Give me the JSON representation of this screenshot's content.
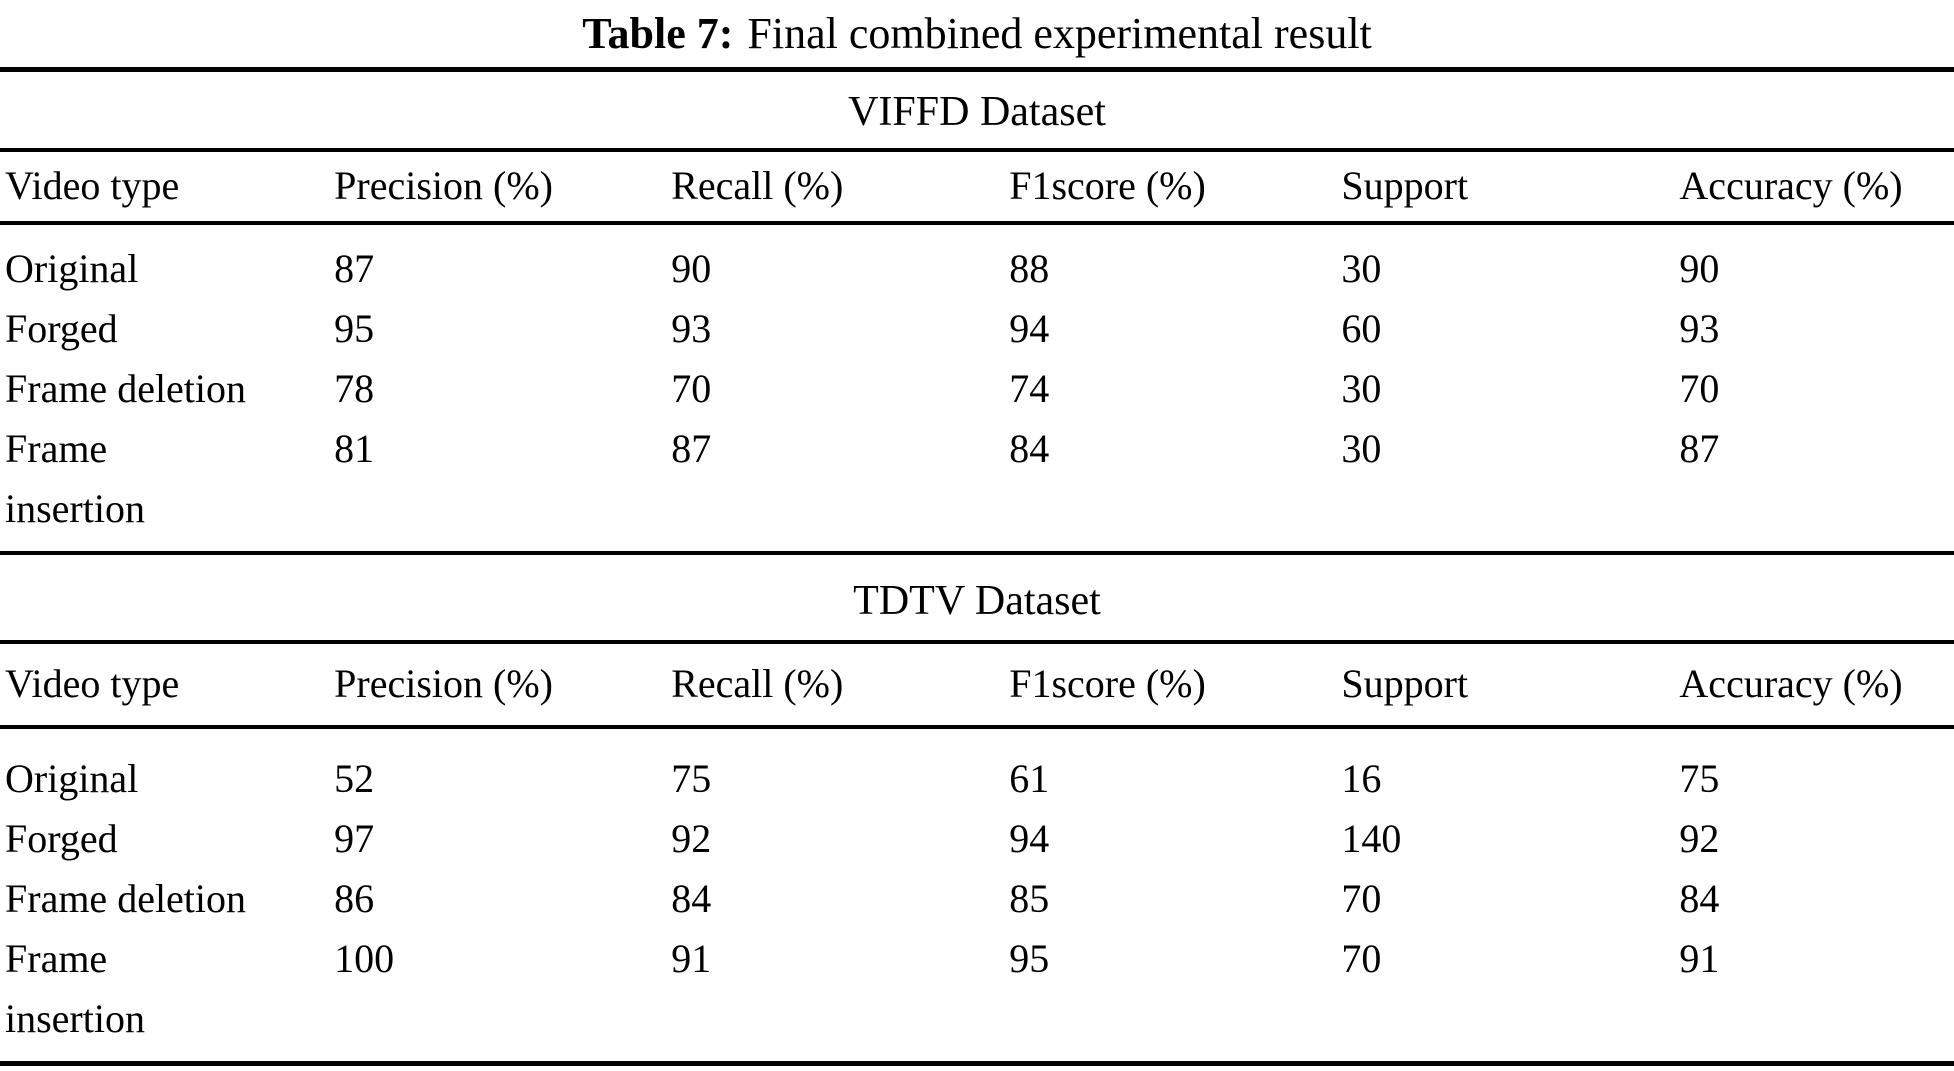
{
  "caption": {
    "label": "Table 7:",
    "text": "Final combined experimental result"
  },
  "columns": [
    "Video type",
    "Precision (%)",
    "Recall (%)",
    "F1score (%)",
    "Support",
    "Accuracy (%)"
  ],
  "sections": [
    {
      "title": "VIFFD Dataset",
      "rows": [
        [
          "Original",
          "87",
          "90",
          "88",
          "30",
          "90"
        ],
        [
          "Forged",
          "95",
          "93",
          "94",
          "60",
          "93"
        ],
        [
          "Frame deletion",
          "78",
          "70",
          "74",
          "30",
          "70"
        ],
        [
          "Frame\ninsertion",
          "81",
          "87",
          "84",
          "30",
          "87"
        ]
      ]
    },
    {
      "title": "TDTV Dataset",
      "rows": [
        [
          "Original",
          "52",
          "75",
          "61",
          "16",
          "75"
        ],
        [
          "Forged",
          "97",
          "92",
          "94",
          "140",
          "92"
        ],
        [
          "Frame deletion",
          "86",
          "84",
          "85",
          "70",
          "84"
        ],
        [
          "Frame\ninsertion",
          "100",
          "91",
          "95",
          "70",
          "91"
        ]
      ]
    }
  ],
  "colors": {
    "text": "#000000",
    "background": "#ffffff",
    "rule": "#000000"
  }
}
